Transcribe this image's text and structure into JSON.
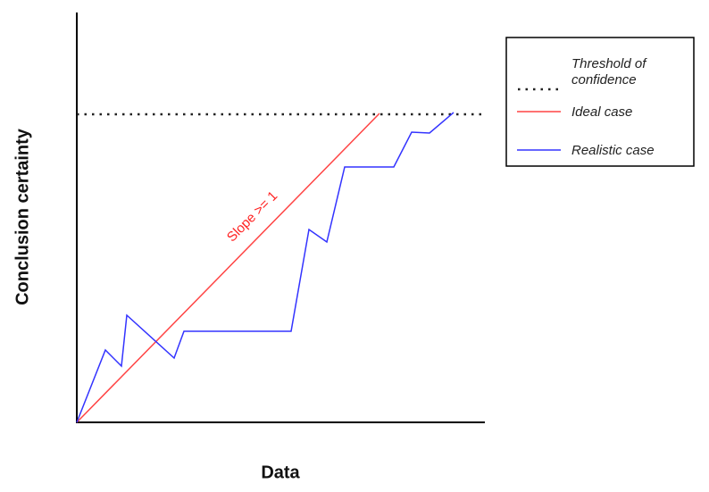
{
  "y_axis_label": "Conclusion certainty",
  "x_axis_label": "Data",
  "annotation": "Slope >= 1",
  "legend": {
    "items": [
      {
        "label": [
          "Threshold of",
          "confidence"
        ]
      },
      {
        "label": "Ideal case"
      },
      {
        "label": "Realistic case"
      }
    ]
  }
}
